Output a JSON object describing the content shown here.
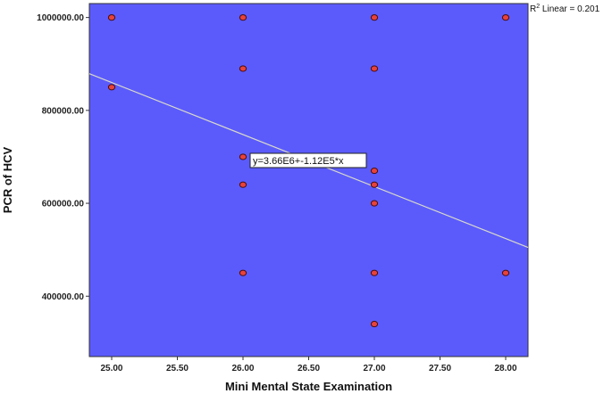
{
  "chart_data": {
    "type": "scatter",
    "title": "",
    "xlabel": "Mini Mental State Examination",
    "ylabel": "PCR of HCV",
    "xlim": [
      24.83,
      28.17
    ],
    "ylim": [
      270000,
      1030000
    ],
    "x_ticks": [
      "25.00",
      "25.50",
      "26.00",
      "26.50",
      "27.00",
      "27.50",
      "28.00"
    ],
    "y_ticks": [
      "400000.00",
      "600000.00",
      "800000.00",
      "1000000.00"
    ],
    "points": [
      {
        "x": 25,
        "y": 1000000
      },
      {
        "x": 25,
        "y": 850000
      },
      {
        "x": 26,
        "y": 1000000
      },
      {
        "x": 26,
        "y": 890000
      },
      {
        "x": 26,
        "y": 700000
      },
      {
        "x": 26,
        "y": 640000
      },
      {
        "x": 26,
        "y": 450000
      },
      {
        "x": 27,
        "y": 1000000
      },
      {
        "x": 27,
        "y": 890000
      },
      {
        "x": 27,
        "y": 670000
      },
      {
        "x": 27,
        "y": 640000
      },
      {
        "x": 27,
        "y": 600000
      },
      {
        "x": 27,
        "y": 450000
      },
      {
        "x": 27,
        "y": 340000
      },
      {
        "x": 28,
        "y": 1000000
      },
      {
        "x": 28,
        "y": 450000
      }
    ],
    "fit_line": {
      "intercept": 3660000,
      "slope": -112000
    },
    "fit_equation": "y=3.66E6+-1.12E5*x",
    "r2_label": {
      "prefix": "R",
      "sup": "2",
      "suffix": " Linear = 0.201"
    },
    "colors": {
      "plot_background": "#5b5bfc",
      "point_fill": "#e8423c",
      "point_stroke": "#4a0b0b",
      "fit_line": "#d9d9c8"
    }
  }
}
